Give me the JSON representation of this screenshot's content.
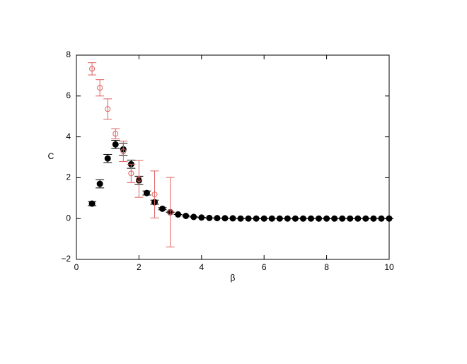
{
  "chart_data": {
    "type": "scatter",
    "xlabel": "β",
    "ylabel": "C",
    "xlim": [
      0,
      10
    ],
    "ylim": [
      -2,
      8
    ],
    "xticks": [
      0,
      2,
      4,
      6,
      8,
      10
    ],
    "yticks": [
      {
        "value": -2,
        "label": "−2"
      },
      0,
      2,
      4,
      6,
      8
    ],
    "series": [
      {
        "color": "#000000",
        "marker": "filled",
        "x": [
          0.5,
          0.75,
          1,
          1.25,
          1.5,
          1.75,
          2,
          2.25,
          2.5,
          2.75,
          3,
          3.25,
          3.5,
          3.75,
          4,
          4.25,
          4.5,
          4.75,
          5,
          5.25,
          5.5,
          5.75,
          6,
          6.25,
          6.5,
          6.75,
          7,
          7.25,
          7.5,
          7.75,
          8,
          8.25,
          8.5,
          8.75,
          9,
          9.25,
          9.5,
          9.75,
          10
        ],
        "values": [
          0.73,
          1.7,
          2.94,
          3.63,
          3.39,
          2.66,
          1.87,
          1.25,
          0.8,
          0.48,
          0.31,
          0.2,
          0.13,
          0.08,
          0.05,
          0.03,
          0.02,
          0.015,
          0.01,
          0,
          0,
          0,
          0,
          0,
          0,
          0,
          0,
          0,
          0,
          0,
          0,
          0,
          0,
          0,
          0,
          0,
          0,
          0,
          0
        ],
        "errors": [
          0.1,
          0.2,
          0.2,
          0.2,
          0.3,
          0.2,
          0.2,
          0.1,
          0.1,
          0.05,
          0,
          0,
          0,
          0,
          0,
          0,
          0,
          0,
          0,
          0,
          0,
          0,
          0,
          0,
          0,
          0,
          0,
          0,
          0,
          0,
          0,
          0,
          0,
          0,
          0,
          0,
          0,
          0,
          0
        ]
      },
      {
        "color": "#e06060",
        "marker": "open",
        "x": [
          0.5,
          0.75,
          1,
          1.25,
          1.5,
          1.75,
          2,
          2.5,
          3
        ],
        "values": [
          7.33,
          6.4,
          5.36,
          4.15,
          3.29,
          2.21,
          1.94,
          1.18,
          0.31
        ],
        "errors": [
          0.3,
          0.4,
          0.5,
          0.25,
          0.5,
          0.45,
          0.9,
          1.15,
          1.7
        ]
      }
    ]
  }
}
